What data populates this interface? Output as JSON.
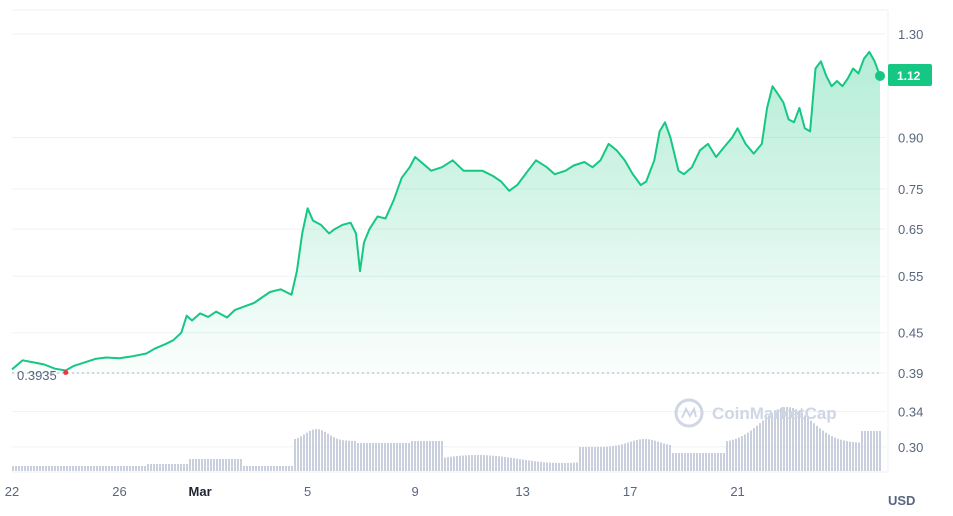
{
  "chart_data": {
    "type": "area",
    "y_scale": "log",
    "y_ticks": [
      "1.30",
      "0.90",
      "0.75",
      "0.65",
      "0.55",
      "0.45",
      "0.39",
      "0.34",
      "0.30"
    ],
    "x_ticks": [
      {
        "label": "22",
        "day": 22,
        "bold": false
      },
      {
        "label": "26",
        "day": 26,
        "bold": false
      },
      {
        "label": "Mar",
        "day": 29,
        "bold": true
      },
      {
        "label": "5",
        "day": 33,
        "bold": false
      },
      {
        "label": "9",
        "day": 37,
        "bold": false
      },
      {
        "label": "13",
        "day": 41,
        "bold": false
      },
      {
        "label": "17",
        "day": 45,
        "bold": false
      },
      {
        "label": "21",
        "day": 49,
        "bold": false
      }
    ],
    "unit": "USD",
    "start_value": "0.3935",
    "current_value": "1.12",
    "watermark": "CoinMarketCap",
    "colors": {
      "line": "#16c784",
      "down": "#ea3943",
      "volume": "#c9cfdd"
    },
    "series": [
      {
        "values": [
          [
            22.0,
            0.395
          ],
          [
            22.4,
            0.408
          ],
          [
            22.8,
            0.405
          ],
          [
            23.2,
            0.402
          ],
          [
            23.6,
            0.396
          ],
          [
            24.0,
            0.3935
          ],
          [
            24.3,
            0.4
          ],
          [
            24.7,
            0.405
          ],
          [
            25.1,
            0.41
          ],
          [
            25.5,
            0.412
          ],
          [
            26.0,
            0.411
          ],
          [
            26.5,
            0.414
          ],
          [
            27.0,
            0.418
          ],
          [
            27.3,
            0.425
          ],
          [
            27.7,
            0.432
          ],
          [
            28.0,
            0.438
          ],
          [
            28.3,
            0.45
          ],
          [
            28.5,
            0.478
          ],
          [
            28.7,
            0.47
          ],
          [
            29.0,
            0.482
          ],
          [
            29.3,
            0.476
          ],
          [
            29.6,
            0.485
          ],
          [
            30.0,
            0.475
          ],
          [
            30.3,
            0.488
          ],
          [
            30.7,
            0.495
          ],
          [
            31.0,
            0.5
          ],
          [
            31.3,
            0.51
          ],
          [
            31.6,
            0.52
          ],
          [
            32.0,
            0.525
          ],
          [
            32.2,
            0.52
          ],
          [
            32.4,
            0.515
          ],
          [
            32.6,
            0.56
          ],
          [
            32.8,
            0.64
          ],
          [
            33.0,
            0.7
          ],
          [
            33.2,
            0.67
          ],
          [
            33.5,
            0.66
          ],
          [
            33.8,
            0.64
          ],
          [
            34.0,
            0.65
          ],
          [
            34.3,
            0.66
          ],
          [
            34.6,
            0.665
          ],
          [
            34.8,
            0.64
          ],
          [
            34.95,
            0.56
          ],
          [
            35.1,
            0.62
          ],
          [
            35.3,
            0.65
          ],
          [
            35.6,
            0.68
          ],
          [
            35.9,
            0.675
          ],
          [
            36.2,
            0.72
          ],
          [
            36.5,
            0.78
          ],
          [
            36.8,
            0.81
          ],
          [
            37.0,
            0.84
          ],
          [
            37.3,
            0.82
          ],
          [
            37.6,
            0.8
          ],
          [
            38.0,
            0.81
          ],
          [
            38.4,
            0.83
          ],
          [
            38.8,
            0.8
          ],
          [
            39.2,
            0.8
          ],
          [
            39.5,
            0.8
          ],
          [
            39.9,
            0.785
          ],
          [
            40.2,
            0.77
          ],
          [
            40.5,
            0.745
          ],
          [
            40.8,
            0.76
          ],
          [
            41.2,
            0.8
          ],
          [
            41.5,
            0.83
          ],
          [
            41.9,
            0.81
          ],
          [
            42.2,
            0.79
          ],
          [
            42.6,
            0.8
          ],
          [
            42.9,
            0.815
          ],
          [
            43.3,
            0.825
          ],
          [
            43.6,
            0.81
          ],
          [
            43.9,
            0.83
          ],
          [
            44.2,
            0.88
          ],
          [
            44.5,
            0.86
          ],
          [
            44.8,
            0.83
          ],
          [
            45.1,
            0.79
          ],
          [
            45.4,
            0.76
          ],
          [
            45.6,
            0.77
          ],
          [
            45.9,
            0.83
          ],
          [
            46.1,
            0.92
          ],
          [
            46.3,
            0.95
          ],
          [
            46.5,
            0.9
          ],
          [
            46.8,
            0.8
          ],
          [
            47.0,
            0.79
          ],
          [
            47.3,
            0.81
          ],
          [
            47.6,
            0.86
          ],
          [
            47.9,
            0.88
          ],
          [
            48.2,
            0.84
          ],
          [
            48.5,
            0.87
          ],
          [
            48.8,
            0.9
          ],
          [
            49.0,
            0.93
          ],
          [
            49.3,
            0.88
          ],
          [
            49.6,
            0.85
          ],
          [
            49.9,
            0.88
          ],
          [
            50.1,
            1.0
          ],
          [
            50.3,
            1.08
          ],
          [
            50.5,
            1.05
          ],
          [
            50.7,
            1.02
          ],
          [
            50.9,
            0.96
          ],
          [
            51.1,
            0.95
          ],
          [
            51.3,
            1.0
          ],
          [
            51.5,
            0.93
          ],
          [
            51.7,
            0.92
          ],
          [
            51.9,
            1.15
          ],
          [
            52.1,
            1.18
          ],
          [
            52.3,
            1.12
          ],
          [
            52.5,
            1.08
          ],
          [
            52.7,
            1.1
          ],
          [
            52.9,
            1.08
          ],
          [
            53.1,
            1.11
          ],
          [
            53.3,
            1.15
          ],
          [
            53.5,
            1.13
          ],
          [
            53.7,
            1.19
          ],
          [
            53.9,
            1.22
          ],
          [
            54.1,
            1.18
          ],
          [
            54.3,
            1.12
          ]
        ]
      }
    ]
  }
}
